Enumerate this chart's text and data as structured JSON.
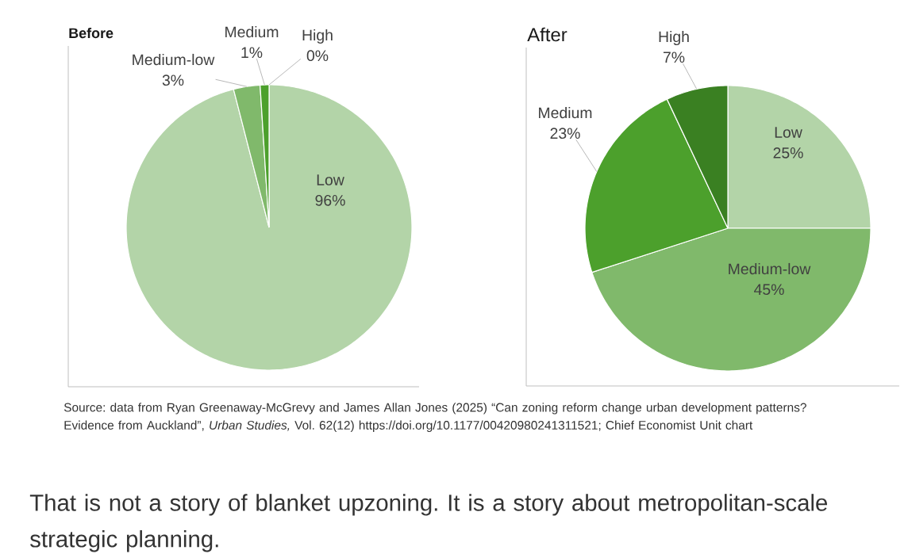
{
  "chart_data": [
    {
      "type": "pie",
      "title": "Before",
      "categories": [
        "Low",
        "Medium-low",
        "Medium",
        "High"
      ],
      "values": [
        96,
        3,
        1,
        0
      ],
      "colors": [
        "#b3d4a8",
        "#80b96b",
        "#4ca02c",
        "#3a8022"
      ],
      "value_labels": [
        "96%",
        "3%",
        "1%",
        "0%"
      ]
    },
    {
      "type": "pie",
      "title": "After",
      "categories": [
        "Low",
        "Medium-low",
        "Medium",
        "High"
      ],
      "values": [
        25,
        45,
        23,
        7
      ],
      "colors": [
        "#b3d4a8",
        "#80b96b",
        "#4ca02c",
        "#3a8022"
      ],
      "value_labels": [
        "25%",
        "45%",
        "23%",
        "7%"
      ]
    },
    {
      "type": "other",
      "annotations": [
        "Source: data from Ryan Greenaway-McGrevy and James Allan Jones (2025) “Can zoning reform change urban development patterns? Evidence from Auckland”, *Urban Studies,* Vol. 62(12) https://doi.org/10.1177/00420980241311521; Chief Economist Unit chart",
        "That is not a story of blanket upzoning. It is a story about metropolitan-scale strategic planning."
      ]
    }
  ]
}
